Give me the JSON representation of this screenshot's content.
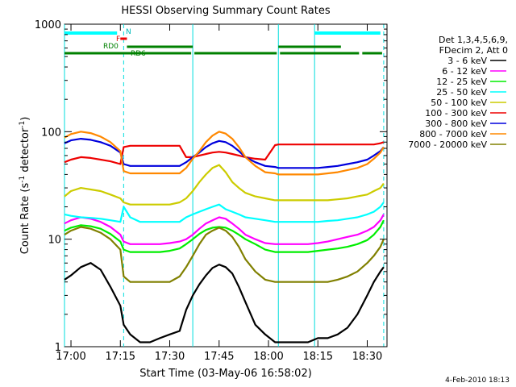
{
  "chart_data": {
    "type": "line",
    "title": "HESSI Observing Summary Count Rates",
    "xlabel": "Start Time (03-May-06 16:58:02)",
    "ylabel_pre": "Count Rate (s",
    "ylabel_sup1": "-1",
    "ylabel_mid": " detector",
    "ylabel_sup2": "-1",
    "ylabel_post": ")",
    "yscale": "log",
    "xlim": [
      "16:58:02",
      "18:36:00"
    ],
    "ylim": [
      1,
      1000
    ],
    "x_ticks": [
      "17:00",
      "17:15",
      "17:30",
      "17:45",
      "18:00",
      "18:15",
      "18:30"
    ],
    "y_ticks": [
      "1",
      "10",
      "100",
      "1000"
    ],
    "legend_header_1": "Det 1,3,4,5,6,9,",
    "legend_header_2": "FDecim 2, Att 0",
    "legend_position": "right",
    "x_times": [
      "16:58:02",
      "17:00",
      "17:03",
      "17:06",
      "17:09",
      "17:12",
      "17:15",
      "17:16",
      "17:18",
      "17:21",
      "17:24",
      "17:27",
      "17:30",
      "17:33",
      "17:35",
      "17:37",
      "17:39",
      "17:41",
      "17:43",
      "17:45",
      "17:47",
      "17:49",
      "17:51",
      "17:53",
      "17:56",
      "17:59",
      "18:02",
      "18:03",
      "18:06",
      "18:09",
      "18:12",
      "18:15",
      "18:18",
      "18:21",
      "18:24",
      "18:27",
      "18:30",
      "18:32",
      "18:34",
      "18:35"
    ],
    "series": [
      {
        "name": "3 - 6 keV",
        "color": "#000000",
        "values": [
          4.2,
          4.6,
          5.5,
          6.0,
          5.2,
          3.6,
          2.4,
          1.6,
          1.3,
          1.1,
          1.1,
          1.2,
          1.3,
          1.4,
          2.2,
          3.0,
          3.8,
          4.6,
          5.4,
          5.8,
          5.5,
          4.8,
          3.6,
          2.6,
          1.6,
          1.3,
          1.1,
          1.1,
          1.1,
          1.1,
          1.1,
          1.2,
          1.2,
          1.3,
          1.5,
          2.0,
          3.0,
          4.0,
          5.0,
          5.5
        ]
      },
      {
        "name": "6 - 12 keV",
        "color": "#ff00ff",
        "values": [
          14,
          15,
          16,
          15.5,
          14.5,
          13,
          11,
          9.5,
          9,
          9,
          9,
          9,
          9.2,
          9.5,
          10,
          11,
          12.5,
          14,
          15,
          16,
          15.5,
          14,
          12.5,
          11,
          10,
          9.2,
          9,
          9,
          9,
          9,
          9,
          9.2,
          9.5,
          10,
          10.5,
          11,
          12,
          13,
          15,
          17
        ]
      },
      {
        "name": "12 - 25 keV",
        "color": "#00ee00",
        "values": [
          12,
          12.8,
          13.5,
          13.2,
          12.5,
          11.2,
          9.5,
          8.0,
          7.6,
          7.6,
          7.6,
          7.6,
          7.8,
          8.2,
          9.0,
          10,
          11.2,
          12.2,
          12.8,
          13.0,
          12.8,
          12,
          11,
          10,
          9,
          8.0,
          7.6,
          7.6,
          7.6,
          7.6,
          7.6,
          7.8,
          8.0,
          8.2,
          8.5,
          9.0,
          9.8,
          11,
          13,
          15
        ]
      },
      {
        "name": "25 - 50 keV",
        "color": "#00ffff",
        "values": [
          17,
          16.5,
          16,
          15.8,
          15.5,
          15,
          14.5,
          20,
          16,
          14.5,
          14.5,
          14.5,
          14.5,
          14.5,
          16,
          17,
          18,
          19,
          20,
          21,
          19,
          18,
          17,
          16,
          15.5,
          15,
          14.5,
          14.5,
          14.5,
          14.5,
          14.5,
          14.5,
          14.8,
          15,
          15.5,
          16,
          17,
          18,
          20,
          22
        ]
      },
      {
        "name": "50 - 100 keV",
        "color": "#cccc00",
        "values": [
          25,
          28,
          30,
          29,
          28,
          26,
          24,
          22,
          21,
          21,
          21,
          21,
          21,
          22,
          24,
          28,
          34,
          40,
          46,
          49,
          42,
          34,
          30,
          27,
          25,
          24,
          23,
          23,
          23,
          23,
          23,
          23,
          23,
          23.5,
          24,
          25,
          26,
          28,
          30,
          33
        ]
      },
      {
        "name": "100 - 300 keV",
        "color": "#ee0000",
        "values": [
          52,
          55,
          58,
          57,
          55,
          53,
          50,
          72,
          74,
          74,
          74,
          74,
          74,
          74,
          58,
          58,
          60,
          62,
          64,
          65,
          64,
          62,
          60,
          58,
          56,
          55,
          75,
          76,
          76,
          76,
          76,
          76,
          76,
          76,
          76,
          76,
          76,
          76,
          78,
          80
        ]
      },
      {
        "name": "300 - 800 keV",
        "color": "#0000dd",
        "values": [
          78,
          83,
          86,
          84,
          80,
          74,
          64,
          50,
          48,
          48,
          48,
          48,
          48,
          48,
          52,
          58,
          64,
          72,
          78,
          82,
          80,
          74,
          66,
          58,
          52,
          48,
          47,
          46,
          46,
          46,
          46,
          46,
          47,
          48,
          50,
          52,
          55,
          60,
          66,
          72
        ]
      },
      {
        "name": "800 - 7000 keV",
        "color": "#ff8800",
        "values": [
          88,
          95,
          100,
          97,
          90,
          80,
          66,
          43,
          41,
          41,
          41,
          41,
          41,
          41,
          46,
          56,
          66,
          80,
          92,
          100,
          96,
          86,
          72,
          58,
          48,
          42,
          41,
          40,
          40,
          40,
          40,
          40,
          41,
          42,
          44,
          46,
          50,
          56,
          64,
          72
        ]
      },
      {
        "name": "7000 - 20000 keV",
        "color": "#808000",
        "values": [
          11,
          12,
          13,
          12.5,
          11.5,
          10,
          8,
          4.5,
          4,
          4,
          4,
          4,
          4,
          4.5,
          5.5,
          7,
          9,
          11,
          12,
          12.8,
          12,
          10.5,
          8.5,
          6.5,
          5,
          4.2,
          4,
          4,
          4,
          4,
          4,
          4,
          4,
          4.2,
          4.5,
          5,
          6,
          7,
          8.5,
          10
        ]
      }
    ],
    "annotations": {
      "n_label": "N",
      "f_label": "F",
      "rd0_label": "RD0",
      "rd6_label": "RD6"
    },
    "night_intervals": [
      [
        "16:58:02",
        "17:14"
      ],
      [
        "18:14",
        "18:34"
      ]
    ],
    "flare_interval": [
      "17:15",
      "17:17"
    ],
    "rd0_intervals": [
      [
        "17:17",
        "17:37"
      ],
      [
        "18:03",
        "18:22"
      ]
    ],
    "rd6_intervals": [
      [
        "16:58:02",
        "17:37"
      ],
      [
        "17:37",
        "18:03"
      ],
      [
        "18:03",
        "18:28"
      ],
      [
        "18:28",
        "18:35"
      ]
    ],
    "saa_lines": [
      "16:58:02",
      "17:16",
      "17:37",
      "18:03",
      "18:14",
      "18:35"
    ],
    "dashed_lines": [
      "17:16",
      "18:35"
    ]
  },
  "footer_date": "4-Feb-2010 18:13"
}
